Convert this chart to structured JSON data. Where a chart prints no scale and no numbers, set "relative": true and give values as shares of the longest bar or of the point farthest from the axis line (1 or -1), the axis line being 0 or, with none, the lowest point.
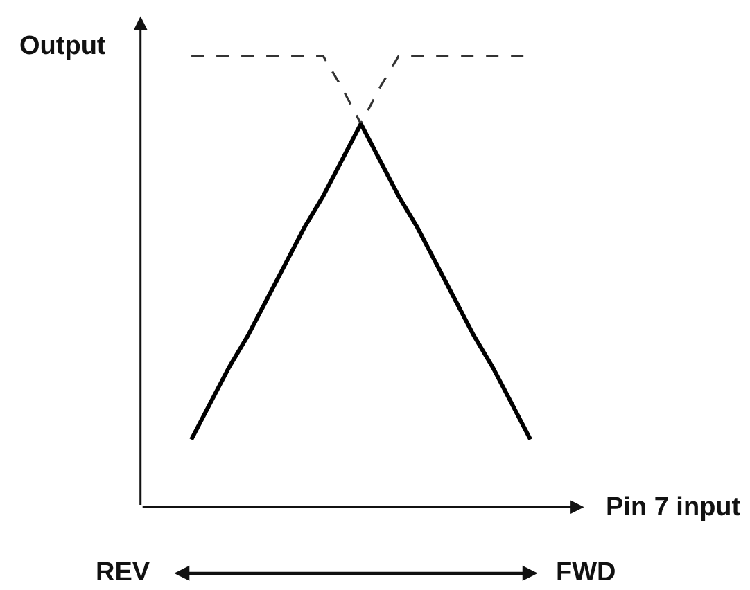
{
  "chart_data": {
    "type": "line",
    "relative": true,
    "xlabel": "Pin 7 input",
    "ylabel": "Output",
    "annotations": [
      "REV",
      "FWD"
    ],
    "categories": [
      null,
      null,
      null,
      null,
      null,
      null,
      null,
      null,
      null,
      null,
      null,
      null,
      null,
      null,
      null,
      null,
      null,
      null,
      null
    ],
    "series": [
      {
        "color": "#000000",
        "line_style": "solid",
        "values": [
          0.15,
          0.23,
          0.31,
          0.38,
          0.46,
          0.54,
          0.62,
          0.69,
          0.77,
          0.85,
          0.77,
          0.69,
          0.62,
          0.54,
          0.46,
          0.38,
          0.31,
          0.23,
          0.15
        ]
      },
      {
        "color": "#333333",
        "line_style": "dashed",
        "values": [
          1,
          1,
          1,
          1,
          1,
          1,
          1,
          1,
          0.93,
          0.85,
          0.93,
          1,
          1,
          1,
          1,
          1,
          1,
          1,
          1
        ]
      }
    ],
    "marker": "none"
  }
}
